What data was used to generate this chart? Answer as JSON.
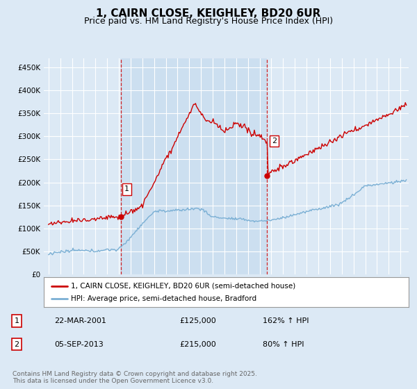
{
  "title": "1, CAIRN CLOSE, KEIGHLEY, BD20 6UR",
  "subtitle": "Price paid vs. HM Land Registry's House Price Index (HPI)",
  "ylim": [
    0,
    470000
  ],
  "yticks": [
    0,
    50000,
    100000,
    150000,
    200000,
    250000,
    300000,
    350000,
    400000,
    450000
  ],
  "ytick_labels": [
    "£0",
    "£50K",
    "£100K",
    "£150K",
    "£200K",
    "£250K",
    "£300K",
    "£350K",
    "£400K",
    "£450K"
  ],
  "background_color": "#dce9f5",
  "plot_bg_color": "#dce9f5",
  "highlight_color": "#ccdff0",
  "grid_color": "#ffffff",
  "red_line_color": "#cc0000",
  "blue_line_color": "#7aafd4",
  "vline_color": "#cc0000",
  "purchase1_year": 2001.22,
  "purchase1_price": 125000,
  "purchase2_year": 2013.67,
  "purchase2_price": 215000,
  "legend_label_red": "1, CAIRN CLOSE, KEIGHLEY, BD20 6UR (semi-detached house)",
  "legend_label_blue": "HPI: Average price, semi-detached house, Bradford",
  "table_row1": [
    "1",
    "22-MAR-2001",
    "£125,000",
    "162% ↑ HPI"
  ],
  "table_row2": [
    "2",
    "05-SEP-2013",
    "£215,000",
    "80% ↑ HPI"
  ],
  "footnote": "Contains HM Land Registry data © Crown copyright and database right 2025.\nThis data is licensed under the Open Government Licence v3.0.",
  "title_fontsize": 11,
  "subtitle_fontsize": 9,
  "tick_fontsize": 7.5,
  "legend_fontsize": 7.5,
  "table_fontsize": 8,
  "footnote_fontsize": 6.5
}
